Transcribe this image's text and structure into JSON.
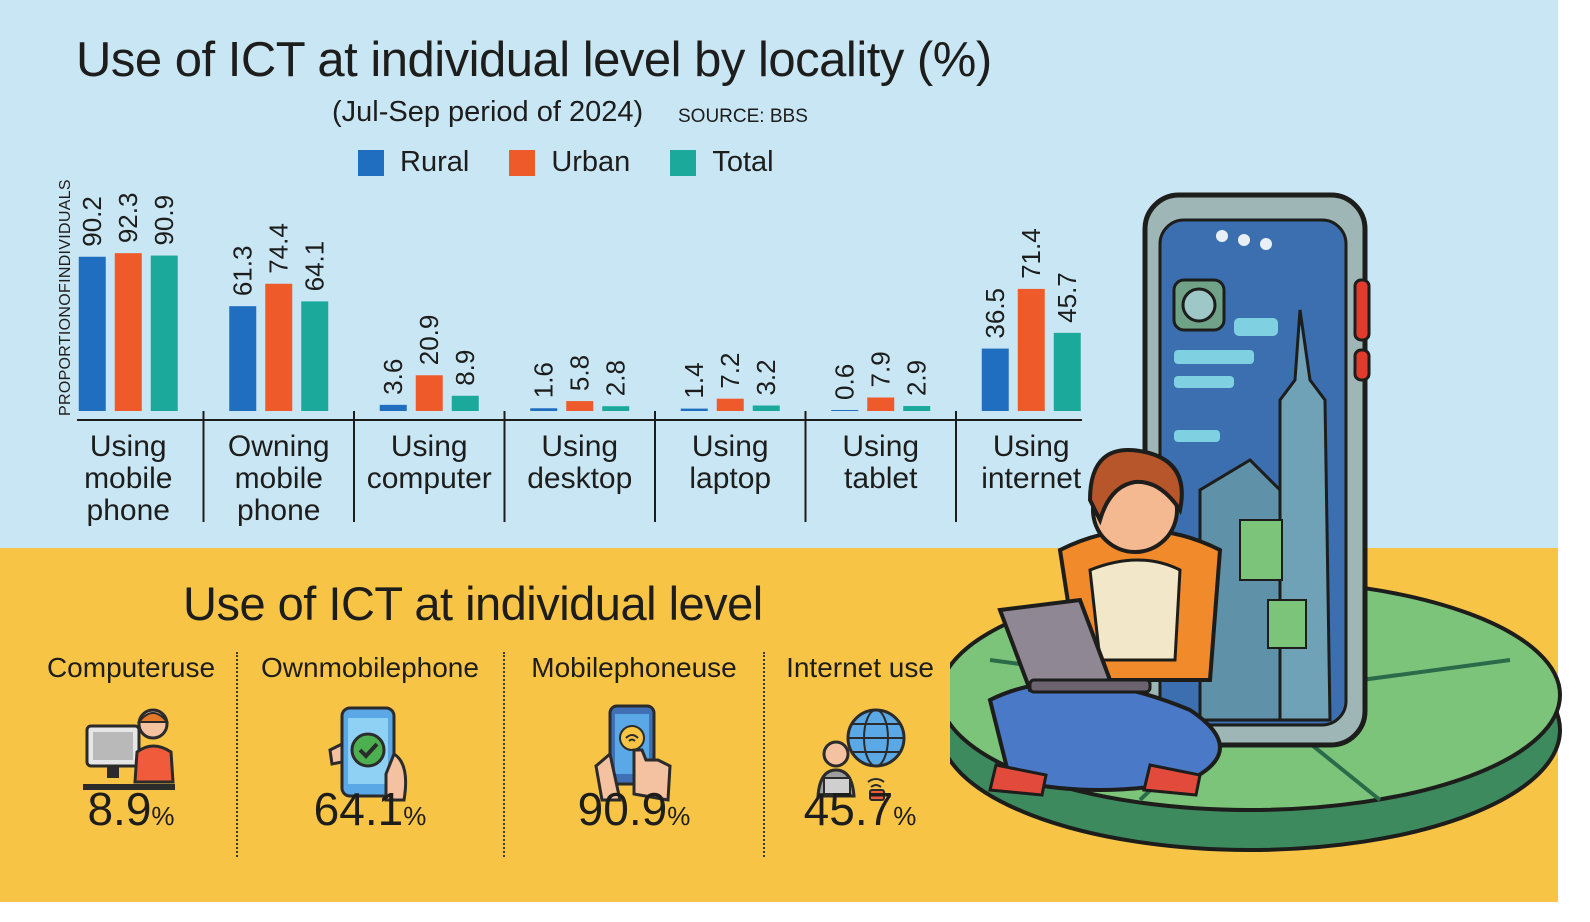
{
  "header": {
    "title": "Use of ICT at individual level by locality (%)",
    "subtitle": "(Jul-Sep period of 2024)",
    "source": "SOURCE: BBS"
  },
  "legend": [
    {
      "label": "Rural",
      "color": "#1f6ebf"
    },
    {
      "label": "Urban",
      "color": "#ee5a2a"
    },
    {
      "label": "Total",
      "color": "#1aa99b"
    }
  ],
  "chart_data": {
    "type": "bar",
    "title": "Use of ICT at individual level by locality (%)",
    "ylabel": "PROPORTIONOFINDIVIDUALS",
    "categories": [
      [
        "Using",
        "mobile",
        "phone"
      ],
      [
        "Owning",
        "mobile",
        "phone"
      ],
      [
        "Using",
        "computer"
      ],
      [
        "Using",
        "desktop"
      ],
      [
        "Using",
        "laptop"
      ],
      [
        "Using",
        "tablet"
      ],
      [
        "Using",
        "internet"
      ]
    ],
    "series": [
      {
        "name": "Rural",
        "color": "#1f6ebf",
        "values": [
          90.2,
          61.3,
          3.6,
          1.6,
          1.4,
          0.6,
          36.5
        ],
        "labels": [
          "90.2",
          "61.3",
          "3.6",
          "1.6",
          "1.4",
          "0.6",
          "36.5"
        ]
      },
      {
        "name": "Urban",
        "color": "#ee5a2a",
        "values": [
          92.3,
          74.4,
          20.9,
          5.8,
          7.2,
          7.9,
          71.4
        ],
        "labels": [
          "92.3",
          "74.4",
          "20.9",
          "5.8",
          "7.2",
          "7.9",
          "71.4"
        ]
      },
      {
        "name": "Total",
        "color": "#1aa99b",
        "values": [
          90.9,
          64.1,
          8.9,
          2.8,
          3.2,
          2.9,
          45.7
        ],
        "labels": [
          "90.9",
          "64.1",
          "8.9",
          "2.8",
          "3.2",
          "2.9",
          "45.7"
        ]
      }
    ],
    "ylim": [
      0,
      100
    ],
    "grid": false,
    "legend_position": "top"
  },
  "section2": {
    "title": "Use of ICT at individual level",
    "stats": [
      {
        "label": "Computeruse",
        "value": "8.9",
        "unit": "%",
        "icon": "computer-user-icon"
      },
      {
        "label": "Ownmobilephone",
        "value": "64.1",
        "unit": "%",
        "icon": "phone-check-icon"
      },
      {
        "label": "Mobilephoneuse",
        "value": "90.9",
        "unit": "%",
        "icon": "phone-tap-icon"
      },
      {
        "label": "Internet use",
        "value": "45.7",
        "unit": "%",
        "icon": "internet-user-icon"
      }
    ]
  },
  "illustration": {
    "icon": "person-with-laptop-and-phone-illustration"
  }
}
